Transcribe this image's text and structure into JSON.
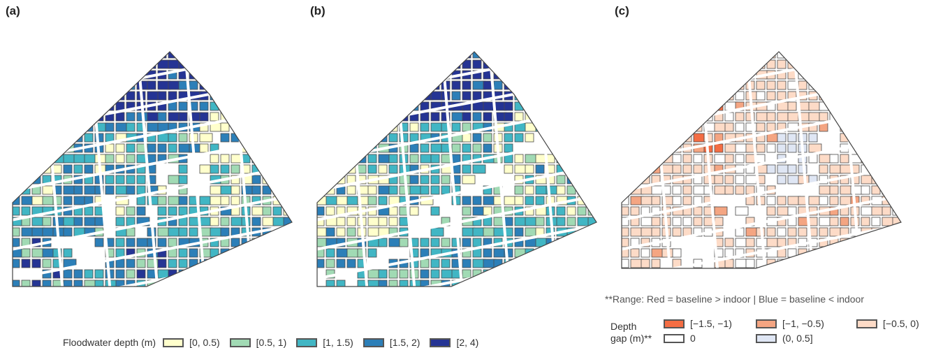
{
  "panels": [
    {
      "label": "(a)"
    },
    {
      "label": "(b)"
    },
    {
      "label": "(c)"
    }
  ],
  "depth_legend": {
    "title": "Floodwater depth (m)",
    "classes": [
      {
        "label": "[0, 0.5)",
        "color": "#ffffcc"
      },
      {
        "label": "[0.5, 1)",
        "color": "#a1dab4"
      },
      {
        "label": "[1, 1.5)",
        "color": "#41b6c4"
      },
      {
        "label": "[1.5, 2)",
        "color": "#2c7fb8"
      },
      {
        "label": "[2, 4)",
        "color": "#253494"
      }
    ]
  },
  "gap_legend": {
    "note": "**Range: Red = baseline > indoor | Blue = baseline < indoor",
    "title_line1": "Depth",
    "title_line2": "gap (m)**",
    "classes": [
      {
        "label": "[−1.5, −1)",
        "color": "#f46d43"
      },
      {
        "label": "[−1, −0.5)",
        "color": "#f4a582"
      },
      {
        "label": "[−0.5, 0)",
        "color": "#fddbc7"
      },
      {
        "label": "0",
        "color": "#ffffff"
      },
      {
        "label": "(0, 0.5]",
        "color": "#dfe6f4"
      }
    ]
  }
}
